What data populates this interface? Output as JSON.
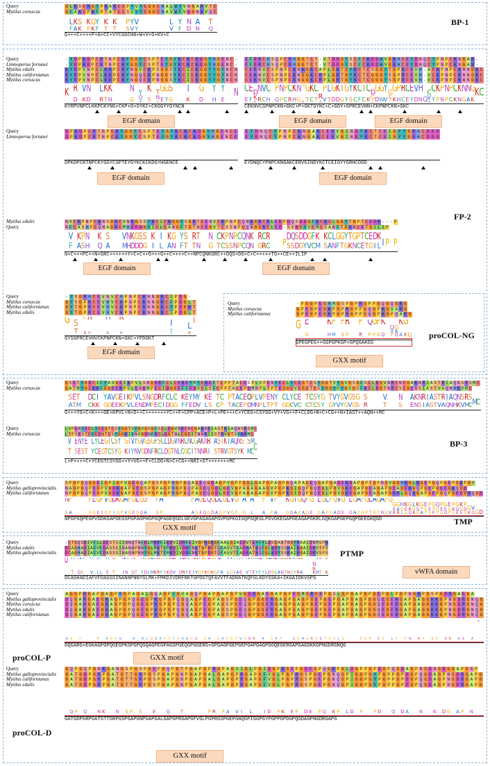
{
  "colors": {
    "panel_border": "#8fb3d9",
    "badge_fill": "#fcd9bd",
    "motif_box": "#cc3333"
  },
  "panels": {
    "bp1": {
      "title": "BP-1",
      "labels": [
        "Query",
        "Mytilus coruscus"
      ],
      "sequences": [
        "GLKSCKGYPKAKCCPYVYCGGCHALWYVNGAKVTC",
        "GFAKCPKFPTATCCSVYYCGGCHAVWFVDGNKVQC"
      ],
      "consensus": "G+++C++++P+A+CC+VYCGGCHA+W+V+G+KV+C"
    },
    "fp2_a_left": {
      "labels": [
        "Query",
        "Limnoperna fortunei",
        "Mytilus edulis",
        "Mytilus californianus",
        "Mytilus coruscus"
      ],
      "sequences": [
        "-YDPKDPCRTNPCKYGGYCSPTEYGYKCKCKDGYHGENC-",
        "-YDPKDPCRTNPCKYGGYCSPTEYGYKCKCKDGYHGENC-",
        "KYRPVNPCLKKPCKYNGVCKPSGGSYKCICKGGYYGYNCN",
        "KYRPVNPCLKKPCKYNGQCKPNGGSYKCICKGGYYGYNCN",
        "KYRPVNPCLKKPCKYNGQCKPNGGSYKCICKGGYYGYNCN"
      ],
      "consensus": "KYRPVNPCLKKPCKYNG+CKP+G+SYKC+CKGGYYGYNCN",
      "domain": "EGF domain"
    },
    "fp2_a_right": {
      "sequences": [
        "EFDRCHSQPCRHGGTCT-VTDDGYSCFCKDDWVGKHCEYDNQCYPNPCKNGAK-",
        "EFDRCHSQPCRHGGTCT-VTDDGYSCFCKDDWVGKHCEYDNQCYPNPCKNGAK-",
        "CERNVCSPNPCKNKGKCAPLGKTGYKCTCSGGYTGPRCEVH-ACKPNPCKNNGKC",
        "CEKNVCSPNPCKNGGKCRPLGKTGYKCTCGGGYSGPRCEVH-VCKPNPCKNNGKC",
        "CEKNVCSPNPCKNGGKCRPLGKTGYKCTCGGGYSGPRCEVH-VCKPNPCKNNGKC"
      ],
      "consensus": "CEKNVCSPNPCKN+GKC+P+GKTGYKC+C+GGY+GPRCEVHN+CKPNPCKN+GKC",
      "domain": "EGF domain"
    },
    "fp2_b_left": {
      "labels": [
        "Query",
        "Limnoperna fortunei"
      ],
      "sequences": [
        "DPKDPCRTNPCKYGGYCSPTEYGYKCKCKDGYHGENCE",
        "DPKDPCRTNPCKYGGYCSPTEYGYKCKCKDGYHGENCE"
      ],
      "consensus": "DPKDPCRTNPCKYGGYCSPTEYGYKCKCKDGYHGENCE",
      "domain": "EGF domain"
    },
    "fp2_b_right": {
      "sequences": [
        "EYDNQCYPNPCKNGAKCERVGINDYKCTCEIGYYGRHCDDD",
        "EYDNQCYPNPCKNGAKCERVGINDYKCTCEIGYYGRHCDDD"
      ],
      "consensus": "EYDNQCYPNPCKNGAKCERVGINDYKCTCEIGYYGRHCDDD",
      "domain": "EGF domain"
    },
    "fp2_c": {
      "title": "FP-2",
      "labels": [
        "Mytilus edulis",
        "Query"
      ],
      "sequences": [
        "NVCKPNPCKNSGRCVNKGSSYKCICKGGYSGRTCENVCKPNPCQNKGRCRLEDPDQSDDGFKCKCLGGYTGPTCEDK---P",
        "NFCASHPCQNAGRCMHDDDGYICLCANGFTGTNCEGVTCSSNPCQNGGRCLED-SSDGYVCMCSANFTGKNCETGILIP"
      ],
      "consensus": "N+C+++PC++N+GRC++++++Y+C+C++G+++G++C++++C++NPCQNKGRC++DQS+DG+C+C+++++TG++CE++ILIP",
      "domains": [
        "EGF domain",
        "EGF domain"
      ]
    },
    "fp2_d": {
      "labels": [
        "Query",
        "Mytilus coruscus",
        "Mytilus californianus",
        "Mytilus edulis"
      ],
      "sequences": [
        "-YSGRHCEVNVCHPNPCKNNGKCIPDG-",
        "GYSGPRCEVHVCKPNPCKNNGKCFPDGLT",
        "GYTGPRCEVHVCKPNPCKNNGKCYPDGKT",
        "GYTGPRCEVHVCKPNPCKNNGKCIPDGLT"
      ],
      "consensus": "GYSGPRCEVHVCKPNPCKN+GKC+YPDGKT",
      "domain": "EGF domain"
    },
    "procol_ng": {
      "title": "proCOL-NG",
      "labels": [
        "Query",
        "Mytilus coruscus",
        "Mytilus californianus"
      ],
      "sequences": [
        "-PGGPEGHMGSPGPRGPPGQGQGKG",
        "GPEGPEGKPGPRGPPGQGPKGVAKG",
        "GPEGPEGKPGPRGPPGQGPKGPQAKG"
      ],
      "consensus": "GPEGPEG++GGPGPKGP+GPQGAKGS",
      "motif": "GXX motif"
    },
    "bp3": {
      "title": "BP-3",
      "labels": [
        "Query",
        "Mytilus coruscus",
        "Query",
        "Mytilus coruscus"
      ],
      "seq1": [
        "GSETYGDCIFYAVGEIKPVLSNGDRFCLCEKEYMYCKEFTCPPTACEOPLVPENYECLYCEGTCSYGGTVYGVGSGFSCLDGVNRCNCGAKNRIASTRIAQNSRSMC",
        "GATMYGCKKFGGEEKPVLENDMPECIDGGEFFEDVCLSFCPPTACEPDMNPLTPTEGGCVCGCTCSYGGYVYGVGSFRCLDGTNRCSCGENSIASTVAQNHKVMC"
      ],
      "cons1": "G+++YG+C+K+++GE+KPVL+N+D++C+++++++YC++F+CPP+ACE+P+L+PE+++C+YCEG+CSYGG+VY+VG++F+CLDG+N+C+CG++N+IAST++AQN++MC",
      "seq2": [
        "LVPENYECLYCEGTCSYGGTVYGVGSGFSCLDGVNRCNCGAKNRIASTKIAQNSRSMC",
        "LTPSESTCYCEGTCSYGGKIYNVGDNFRCLDGTNLCGCITNNRIISTRVGTSYKRMC"
      ],
      "cons2": "L+P++++C+YCEGTCSYGG++Y+VG++F+CLDG+N+C+CG++NRI+ST+++++++MC"
    },
    "tmp": {
      "title": "TMP",
      "labels": [
        "Query",
        "Mytilus galloprovincialis",
        "Mytilus californianus"
      ],
      "sequences": [
        "SPGPGQGGEIGPIGPVGEGQAPGSPGPHGPGQAGEQGDAGPVGPPGGLGAPGPAGPGQAPAGEQGAPGADEKDAPGPTGPNGVGGHKGLKGEPGQPGEPGKPGV",
        "NAGPGQPEGPVGDKGAPGEGSPGPAGPHGPGQPAGEQGDLGEVGPAGAGAAGVPGPKGIGQPGQEGLPGVGKEGAPGEAGAPGEAGEKGQPGEPGEEGKQGD",
        "NPGPGQPEGPVGDKGAPGEGSPGPAGPHGPGQPAGEQGDLGEVGPAGAGAPGVPGPKGIGQPGQEGLPGVGKEGAPGEAGAPGKRLGQKGAPGEPGQPGEEGKQGD"
      ],
      "consensus": "NPGPGQPEGPVGDKGAPGEGSPGPAGPHGPGQPAGEQGDLGEVGPAGAGAPGVPGPKGIGQPGQEGLPGVGKEGAPGEAGAPGKRLGQKGAPGEPGQPGEEGKQGD",
      "motif": "GXX motif"
    },
    "ptmp": {
      "title": "PTMP",
      "labels": [
        "Query",
        "Mytilus edulis",
        "Mytilus galloprovincialis"
      ],
      "sequences": [
        "-CTGQSDIVFLLDESTSIINNQTNFDLMKRFIKDVIDRFEIVGPKGKGFAALGIAEDVTEYFYLDSCANTNGYRAAIDNMSPK",
        "DCAGHADIAFVFDASSSINANNPNNYGLMKTFMKDIVDRFNKTGPDGTQFAVVTFADRATKQFGLKDYSSKAIKGAIDRVTPS",
        "DCAGHADIAFVFDASSSINANNPNNYGLMKTFMKDIVDRFNKTGPDGTQFAVVTFADRATKQFGLKDYSSKAIKGAIDKVSPS"
      ],
      "consensus": "DCAGHADIAFVFDASSSINANNPNNYGLMK+FMKDIVDRFNKTGPDGTQFAVVTFADRATKQFGLKDYSSKA+IKGAIDKVSPS",
      "domain": "vWFA domain"
    },
    "procol_p": {
      "title": "proCOL-P",
      "labels": [
        "Query",
        "Mytilus galloprovincialis",
        "Mytilus coruscus",
        "Mytilus edulis",
        "Mytilus californianus"
      ],
      "sequences": [
        "AGGPRGAPGAGPHGPAGALGQAGPFGVAGQPGAPGAPGPVGDRGAEGAPGPEGMGRGEPGSLGPGAPGPGEPGLPGPNGKPGSPGDRGAEGA",
        "DQGARGAEGKAGPGPQGEGPKGPGPQGQAGPEGPAGSPGEQGPGGERGAGPGAGPGEPGEPGAPGAGPGGQEGERGAPGAGGKKGPNGDRGNQG",
        "DQGARGAEGKAGPGPQGEGPKGPGPQGQAGPEGPAGSPGEQGPGGERGAGPGAGPGEPGEPGAPGAGPGGQEGERGAPGAGGKKGPNGDRGNQG",
        "DQGARGAEGKAGPGPQGEGPKGPGPQGQAGPEGPAGSPGEQGPGGERGAGPGAGPGEPGEPGAPGAGPGGQEGERGAPGAGGKKGPNGDRGNQG",
        "DQGARGAEGKAGPGPQGEGPKGPGPQGQAGPEGPAGSPGEQGPGGERGAGPGAGPGEPGEPGAPGAGPGGQEGERGAPGAGGKKGPNGDRGNQG"
      ],
      "consensus": "DQGARG+EGKAGPGPQGEGPKGPGPQGQAGPEGPAGSPGEQGPGGERG+GPGAGPGEPGEPGAPGAGPGGQEGERGAPGAGGKKGPNGDRGNQG",
      "motif": "GXX motif"
    },
    "procol_d": {
      "title": "proCOL-D",
      "labels": [
        "Query",
        "Mytilus galloprovincialis",
        "Mytilus californianus",
        "Mytilus edulis"
      ],
      "sequences": [
        "GQPGQPGNKGANGSPGSPGEPGQPGTPGAPGPRGPAGVIGLPGIDGPKGEPGDEGPQGKPGLDGPPGPDGPQGDAGPNGDNGDGGAPGNP",
        "GATGDPGRPGATGTTGRPGSPGAPGNPGAPGALGAPGPRGAPGFVGLPGPRGSPGEPGNQGPIGGPGYPGPPGPDGPQGDAGPNGDRGAPG",
        "GATGDPGRPGATGTTGRPGSPGAPGNPGAPGALGAPGPRGAPGFVGLPGPRGSPGEPGNQGPIGGPGYPGPPGPDGPQGDAGPNGDRGAPG",
        "GATGDPGRPGATGTTGRPGSPGAPGNPGAPGALGAPGPRGAPGFVGLPGPRGSPGEPGNQGPIGGPGYPGPPGPDGPQGDAGPNGDRGAPG"
      ],
      "consensus": "GATGDPGRPGATGTTGRPGSPGAPGNPGAPGALGAPGPRGAPGFVGLPGPRGSPGEPGNQGPIGGPGYPGPPGPDGPQGDAGPNGDRGAPG",
      "motif": "GXX motif"
    }
  }
}
